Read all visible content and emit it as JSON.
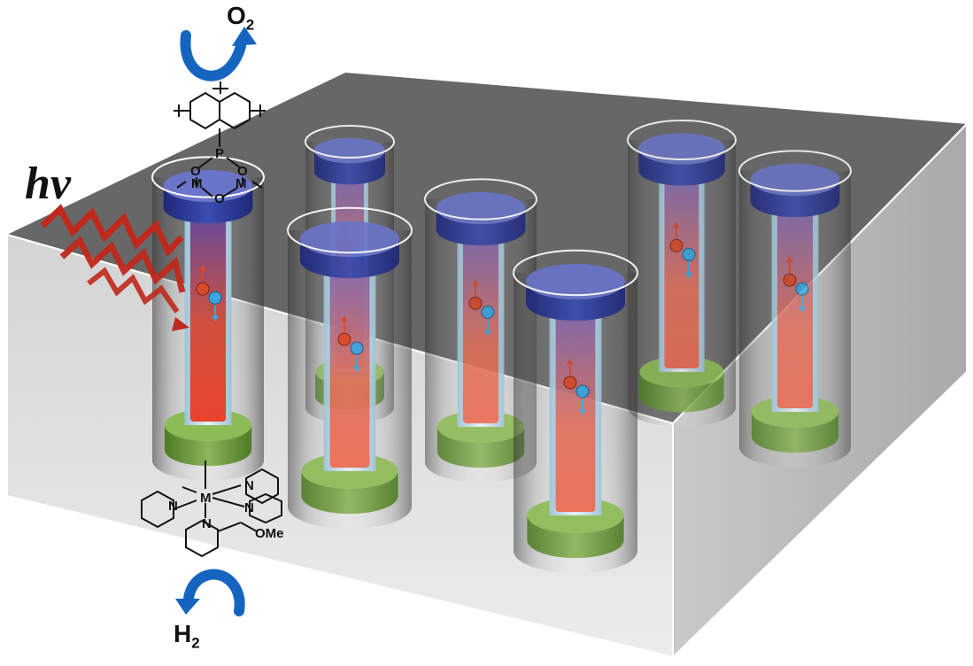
{
  "labels": {
    "light": "hν",
    "oxygen": "O",
    "oxygen_sub": "2",
    "hydrogen": "H",
    "hydrogen_sub": "2",
    "metal_symbol": "M",
    "phosphorus": "P",
    "oxygen_atom": "O",
    "nitrogen": "N",
    "methoxy": "OMe"
  },
  "nanorods": [
    {
      "id": "rod-1"
    },
    {
      "id": "rod-2"
    },
    {
      "id": "rod-3"
    },
    {
      "id": "rod-4"
    },
    {
      "id": "rod-5"
    },
    {
      "id": "rod-6"
    },
    {
      "id": "rod-7"
    }
  ],
  "colors": {
    "cap_blue": "#2c3a9a",
    "rod_red": "#e84a36",
    "base_green": "#6f9a3c",
    "block_top": "#6a6a6a",
    "block_side": "#dcdcdc",
    "arrow_blue": "#1565c0",
    "light_red": "#c0281c",
    "electron_red": "#d84a2a",
    "hole_blue": "#39a6e0"
  }
}
